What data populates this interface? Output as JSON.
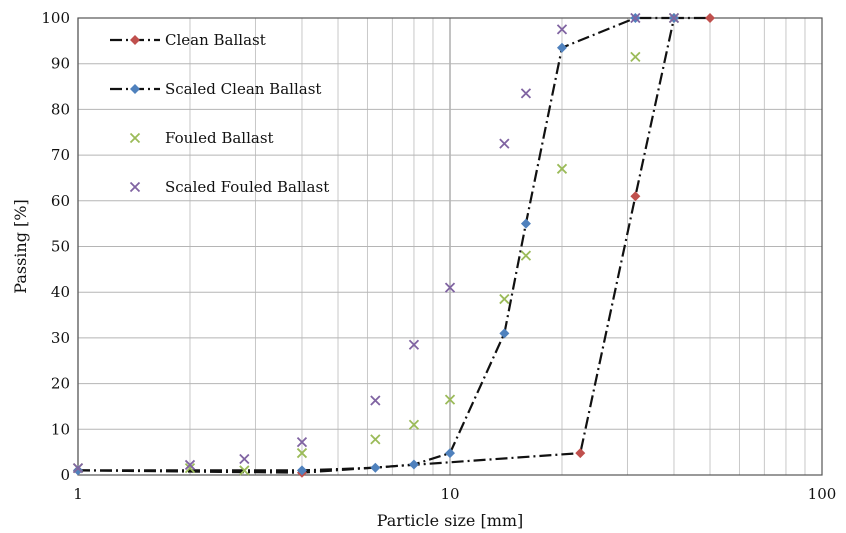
{
  "chart_data": {
    "type": "scatter",
    "xlabel": "Particle size [mm]",
    "ylabel": "Passing [%]",
    "xscale": "log",
    "xlim": [
      1,
      100
    ],
    "ylim": [
      0,
      100
    ],
    "x_ticks": [
      "1",
      "10",
      "100"
    ],
    "y_ticks": [
      "0",
      "10",
      "20",
      "30",
      "40",
      "50",
      "60",
      "70",
      "80",
      "90",
      "100"
    ],
    "grid": true,
    "legend_position": "top-left",
    "series": [
      {
        "name": "Clean Ballast",
        "marker": "diamond",
        "line": "dash-dot",
        "color": "#c0504d",
        "points": [
          [
            1,
            1
          ],
          [
            4,
            0.5
          ],
          [
            22.4,
            4.8
          ],
          [
            31.5,
            61
          ],
          [
            40,
            100
          ],
          [
            50,
            100
          ]
        ]
      },
      {
        "name": "Scaled Clean Ballast",
        "marker": "diamond",
        "line": "dash-dot",
        "color": "#4f81bd",
        "points": [
          [
            1,
            1
          ],
          [
            4,
            1
          ],
          [
            6.3,
            1.6
          ],
          [
            8,
            2.3
          ],
          [
            10,
            4.8
          ],
          [
            14,
            31
          ],
          [
            16,
            55
          ],
          [
            20,
            93.5
          ],
          [
            31.5,
            100
          ],
          [
            40,
            100
          ]
        ]
      },
      {
        "name": "Fouled Ballast",
        "marker": "x",
        "line": "none",
        "color": "#9bbb59",
        "points": [
          [
            1,
            1.5
          ],
          [
            2,
            1.5
          ],
          [
            2.8,
            1
          ],
          [
            4,
            4.8
          ],
          [
            6.3,
            7.8
          ],
          [
            8,
            11
          ],
          [
            10,
            16.5
          ],
          [
            14,
            38.5
          ],
          [
            16,
            48
          ],
          [
            20,
            67
          ],
          [
            31.5,
            91.5
          ],
          [
            40,
            100
          ]
        ]
      },
      {
        "name": "Scaled Fouled Ballast",
        "marker": "x",
        "line": "none",
        "color": "#8064a2",
        "points": [
          [
            1,
            1.5
          ],
          [
            2,
            2.2
          ],
          [
            2.8,
            3.5
          ],
          [
            4,
            7.2
          ],
          [
            6.3,
            16.3
          ],
          [
            8,
            28.5
          ],
          [
            10,
            41
          ],
          [
            14,
            72.5
          ],
          [
            16,
            83.5
          ],
          [
            20,
            97.5
          ],
          [
            31.5,
            100
          ],
          [
            40,
            100
          ]
        ]
      }
    ]
  }
}
